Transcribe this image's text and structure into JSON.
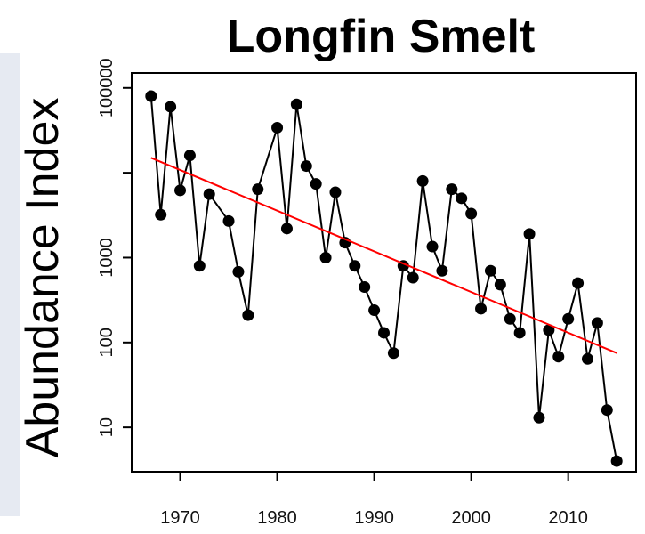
{
  "chart_data": {
    "type": "line",
    "title": "Longfin Smelt",
    "ylabel": "Abundance Index",
    "xlabel": "",
    "yscale": "log",
    "xlim": [
      1965,
      2017
    ],
    "ylim": [
      3,
      150000
    ],
    "xticks": [
      1970,
      1980,
      1990,
      2000,
      2010
    ],
    "yticks": [
      10,
      100,
      1000,
      10000,
      100000
    ],
    "ytick_labels": [
      "10",
      "100",
      "1000",
      "",
      "100000"
    ],
    "grid": false,
    "series": [
      {
        "kind": "points-lines",
        "color": "#000000",
        "x": [
          1967,
          1968,
          1969,
          1970,
          1971,
          1972,
          1973,
          1975,
          1976,
          1977,
          1978,
          1980,
          1981,
          1982,
          1983,
          1984,
          1985,
          1986,
          1987,
          1988,
          1989,
          1990,
          1991,
          1992,
          1993,
          1994,
          1995,
          1996,
          1997,
          1998,
          1999,
          2000,
          2001,
          2002,
          2003,
          2004,
          2005,
          2006,
          2007,
          2008,
          2009,
          2010,
          2011,
          2012,
          2013,
          2014,
          2015
        ],
        "y": [
          80000,
          3200,
          60000,
          6200,
          16000,
          800,
          5600,
          2700,
          680,
          210,
          6400,
          34000,
          2200,
          64000,
          12000,
          7400,
          1000,
          5900,
          1500,
          800,
          450,
          240,
          130,
          75,
          800,
          580,
          8000,
          1350,
          700,
          6400,
          5000,
          3300,
          250,
          700,
          480,
          190,
          130,
          1900,
          13,
          140,
          68,
          190,
          500,
          64,
          170,
          16,
          4
        ]
      },
      {
        "kind": "trend",
        "color": "#ff0000",
        "x": [
          1967,
          2015
        ],
        "y": [
          15000,
          75
        ]
      }
    ]
  }
}
